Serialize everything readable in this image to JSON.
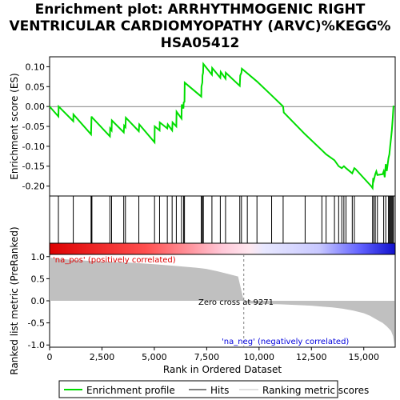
{
  "chart_data": [
    {
      "type": "line",
      "title_lines": [
        "Enrichment plot: ARRHYTHMOGENIC RIGHT",
        "VENTRICULAR CARDIOMYOPATHY (ARVC)%KEGG%",
        "HSA05412"
      ],
      "ylabel": "Enrichment score (ES)",
      "ylim": [
        -0.225,
        0.125
      ],
      "xlim": [
        0,
        16500
      ],
      "y_ticks": [
        0.1,
        0.05,
        0.0,
        -0.05,
        -0.1,
        -0.15,
        -0.2
      ],
      "y_tick_labels": [
        "0.10",
        "0.05",
        "0.00",
        "-0.05",
        "-0.10",
        "-0.15",
        "-0.20"
      ],
      "color": "#00dd00",
      "x": [
        0,
        420,
        430,
        1130,
        1140,
        1980,
        2000,
        2020,
        2880,
        2890,
        2960,
        2970,
        3540,
        3560,
        3620,
        3640,
        4260,
        4280,
        5010,
        5020,
        5250,
        5260,
        5620,
        5640,
        5850,
        5870,
        6050,
        6060,
        6300,
        6310,
        6390,
        6400,
        6440,
        6450,
        7240,
        7250,
        7290,
        7300,
        7330,
        7340,
        7750,
        7760,
        8150,
        8170,
        8400,
        8410,
        9080,
        9100,
        9160,
        9180,
        9900,
        10600,
        11150,
        11180,
        12200,
        13000,
        13200,
        13600,
        13800,
        13950,
        14050,
        14150,
        14450,
        14550,
        14600,
        15350,
        15420,
        15450,
        15480,
        15550,
        15600,
        15650,
        15900,
        15950,
        16000,
        16050,
        16100,
        16180,
        16220,
        16260,
        16300,
        16340,
        16380,
        16420
      ],
      "y": [
        0.0,
        -0.025,
        0.0,
        -0.037,
        -0.02,
        -0.07,
        -0.025,
        -0.027,
        -0.075,
        -0.055,
        -0.06,
        -0.035,
        -0.065,
        -0.048,
        -0.052,
        -0.028,
        -0.062,
        -0.045,
        -0.09,
        -0.05,
        -0.06,
        -0.04,
        -0.055,
        -0.045,
        -0.06,
        -0.04,
        -0.05,
        -0.013,
        -0.03,
        0.005,
        -0.005,
        0.01,
        0.012,
        0.06,
        0.025,
        0.05,
        0.06,
        0.078,
        0.085,
        0.107,
        0.08,
        0.097,
        0.072,
        0.087,
        0.07,
        0.085,
        0.052,
        0.078,
        0.085,
        0.095,
        0.063,
        0.028,
        0.0,
        -0.015,
        -0.07,
        -0.11,
        -0.12,
        -0.135,
        -0.15,
        -0.155,
        -0.15,
        -0.155,
        -0.168,
        -0.155,
        -0.157,
        -0.2,
        -0.205,
        -0.18,
        -0.185,
        -0.17,
        -0.163,
        -0.172,
        -0.17,
        -0.163,
        -0.178,
        -0.145,
        -0.162,
        -0.13,
        -0.12,
        -0.1,
        -0.08,
        -0.06,
        -0.03,
        0.002
      ]
    },
    {
      "type": "hits",
      "hit_positions": [
        420,
        1130,
        1980,
        2000,
        2020,
        2880,
        2960,
        3540,
        3620,
        4260,
        5010,
        5250,
        5620,
        5850,
        6050,
        6300,
        6400,
        6440,
        7240,
        7290,
        7330,
        7340,
        7750,
        8150,
        8400,
        9080,
        9160,
        9440,
        9900,
        10600,
        11150,
        12200,
        13000,
        13200,
        13600,
        13800,
        13950,
        14050,
        14150,
        14450,
        14550,
        15420,
        15480,
        15550,
        15650,
        15950,
        16050,
        16180,
        16220,
        16260,
        16300,
        16340,
        16380,
        16420
      ]
    },
    {
      "type": "area",
      "ylabel": "Ranked list metric (PreRanked)",
      "xlabel": "Rank in Ordered Dataset",
      "ylim": [
        -1.05,
        1.05
      ],
      "xlim": [
        0,
        16500
      ],
      "x_ticks": [
        0,
        2500,
        5000,
        7500,
        10000,
        12500,
        15000
      ],
      "x_tick_labels": [
        "0",
        "2,500",
        "5,000",
        "7,500",
        "10,000",
        "12,500",
        "15,000"
      ],
      "y_ticks": [
        1.0,
        0.5,
        0.0,
        -0.5,
        -1.0
      ],
      "y_tick_labels": [
        "1.0",
        "0.5",
        "0.0",
        "-0.5",
        "-1.0"
      ],
      "x": [
        0,
        100,
        500,
        1000,
        2000,
        3000,
        4000,
        5000,
        6000,
        7000,
        7500,
        8000,
        8500,
        9000,
        9271,
        9500,
        10000,
        11000,
        12000,
        12500,
        13000,
        13500,
        14000,
        14500,
        15000,
        15300,
        15600,
        15900,
        16100,
        16300,
        16400,
        16460
      ],
      "values": [
        1.0,
        0.97,
        0.95,
        0.93,
        0.9,
        0.88,
        0.86,
        0.83,
        0.79,
        0.75,
        0.72,
        0.67,
        0.61,
        0.55,
        0.0,
        -0.06,
        -0.07,
        -0.08,
        -0.1,
        -0.11,
        -0.13,
        -0.15,
        -0.18,
        -0.22,
        -0.28,
        -0.34,
        -0.42,
        -0.5,
        -0.58,
        -0.68,
        -0.8,
        -1.0
      ],
      "zero_cross_label": "Zero cross at 9271",
      "zero_cross": 9271,
      "pos_label": "'na_pos' (positively correlated)",
      "neg_label": "'na_neg' (negatively correlated)",
      "fill_color": "#c0c0c0"
    }
  ],
  "legend": {
    "items": [
      {
        "label": "Enrichment profile",
        "color": "#00dd00"
      },
      {
        "label": "Hits",
        "color": "#000000"
      },
      {
        "label": "Ranking metric scores",
        "color": "#c0c0c0"
      }
    ]
  },
  "colors": {
    "pos_label": "#dd0000",
    "neg_label": "#0000dd",
    "zero_line": "#808080"
  }
}
